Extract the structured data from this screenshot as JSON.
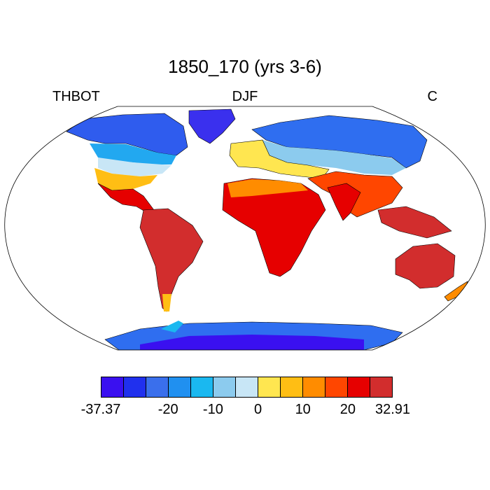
{
  "title": "1850_170 (yrs 3-6)",
  "left_label": "THBOT",
  "center_label": "DJF",
  "right_label": "C",
  "colorbar": {
    "colors": [
      "#3a10f0",
      "#2030ee",
      "#3a6fec",
      "#2090f0",
      "#1ab8f0",
      "#8ccbee",
      "#c8e6f6",
      "#ffe650",
      "#ffbe14",
      "#ff8c00",
      "#ff4600",
      "#e60000",
      "#d22d2d"
    ],
    "tick_labels": [
      "-37.37",
      "-20",
      "-10",
      "0",
      "10",
      "20",
      "32.91"
    ]
  },
  "map": {
    "projection": "Robinson",
    "variable": "THBOT",
    "units": "C",
    "season": "DJF",
    "min": -37.37,
    "max": 32.91
  }
}
